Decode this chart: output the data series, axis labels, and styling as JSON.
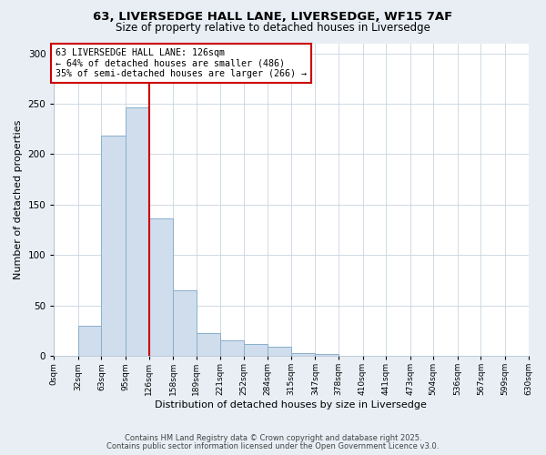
{
  "title1": "63, LIVERSEDGE HALL LANE, LIVERSEDGE, WF15 7AF",
  "title2": "Size of property relative to detached houses in Liversedge",
  "xlabel": "Distribution of detached houses by size in Liversedge",
  "ylabel": "Number of detached properties",
  "bar_edges": [
    0,
    32,
    63,
    95,
    126,
    158,
    189,
    221,
    252,
    284,
    315,
    347,
    378,
    410,
    441,
    473,
    504,
    536,
    567,
    599,
    630
  ],
  "bar_heights": [
    0,
    30,
    218,
    246,
    136,
    65,
    23,
    15,
    12,
    9,
    3,
    2,
    0,
    0,
    0,
    0,
    0,
    0,
    0,
    0
  ],
  "bar_color": "#cfdded",
  "bar_edge_color": "#8ab0cc",
  "vline_x": 126,
  "vline_color": "#cc0000",
  "annotation_text": "63 LIVERSEDGE HALL LANE: 126sqm\n← 64% of detached houses are smaller (486)\n35% of semi-detached houses are larger (266) →",
  "annotation_box_edgecolor": "#cc0000",
  "ylim": [
    0,
    310
  ],
  "yticks": [
    0,
    50,
    100,
    150,
    200,
    250,
    300
  ],
  "tick_labels": [
    "0sqm",
    "32sqm",
    "63sqm",
    "95sqm",
    "126sqm",
    "158sqm",
    "189sqm",
    "221sqm",
    "252sqm",
    "284sqm",
    "315sqm",
    "347sqm",
    "378sqm",
    "410sqm",
    "441sqm",
    "473sqm",
    "504sqm",
    "536sqm",
    "567sqm",
    "599sqm",
    "630sqm"
  ],
  "footer1": "Contains HM Land Registry data © Crown copyright and database right 2025.",
  "footer2": "Contains public sector information licensed under the Open Government Licence v3.0.",
  "bg_color": "#e8eef4",
  "plot_bg_color": "#ffffff",
  "grid_color": "#c8d4e0",
  "title1_fontsize": 9.5,
  "title2_fontsize": 8.5,
  "xlabel_fontsize": 8,
  "ylabel_fontsize": 8,
  "annotation_fontsize": 7.2,
  "footer_fontsize": 6,
  "xtick_fontsize": 6.5,
  "ytick_fontsize": 7.5
}
